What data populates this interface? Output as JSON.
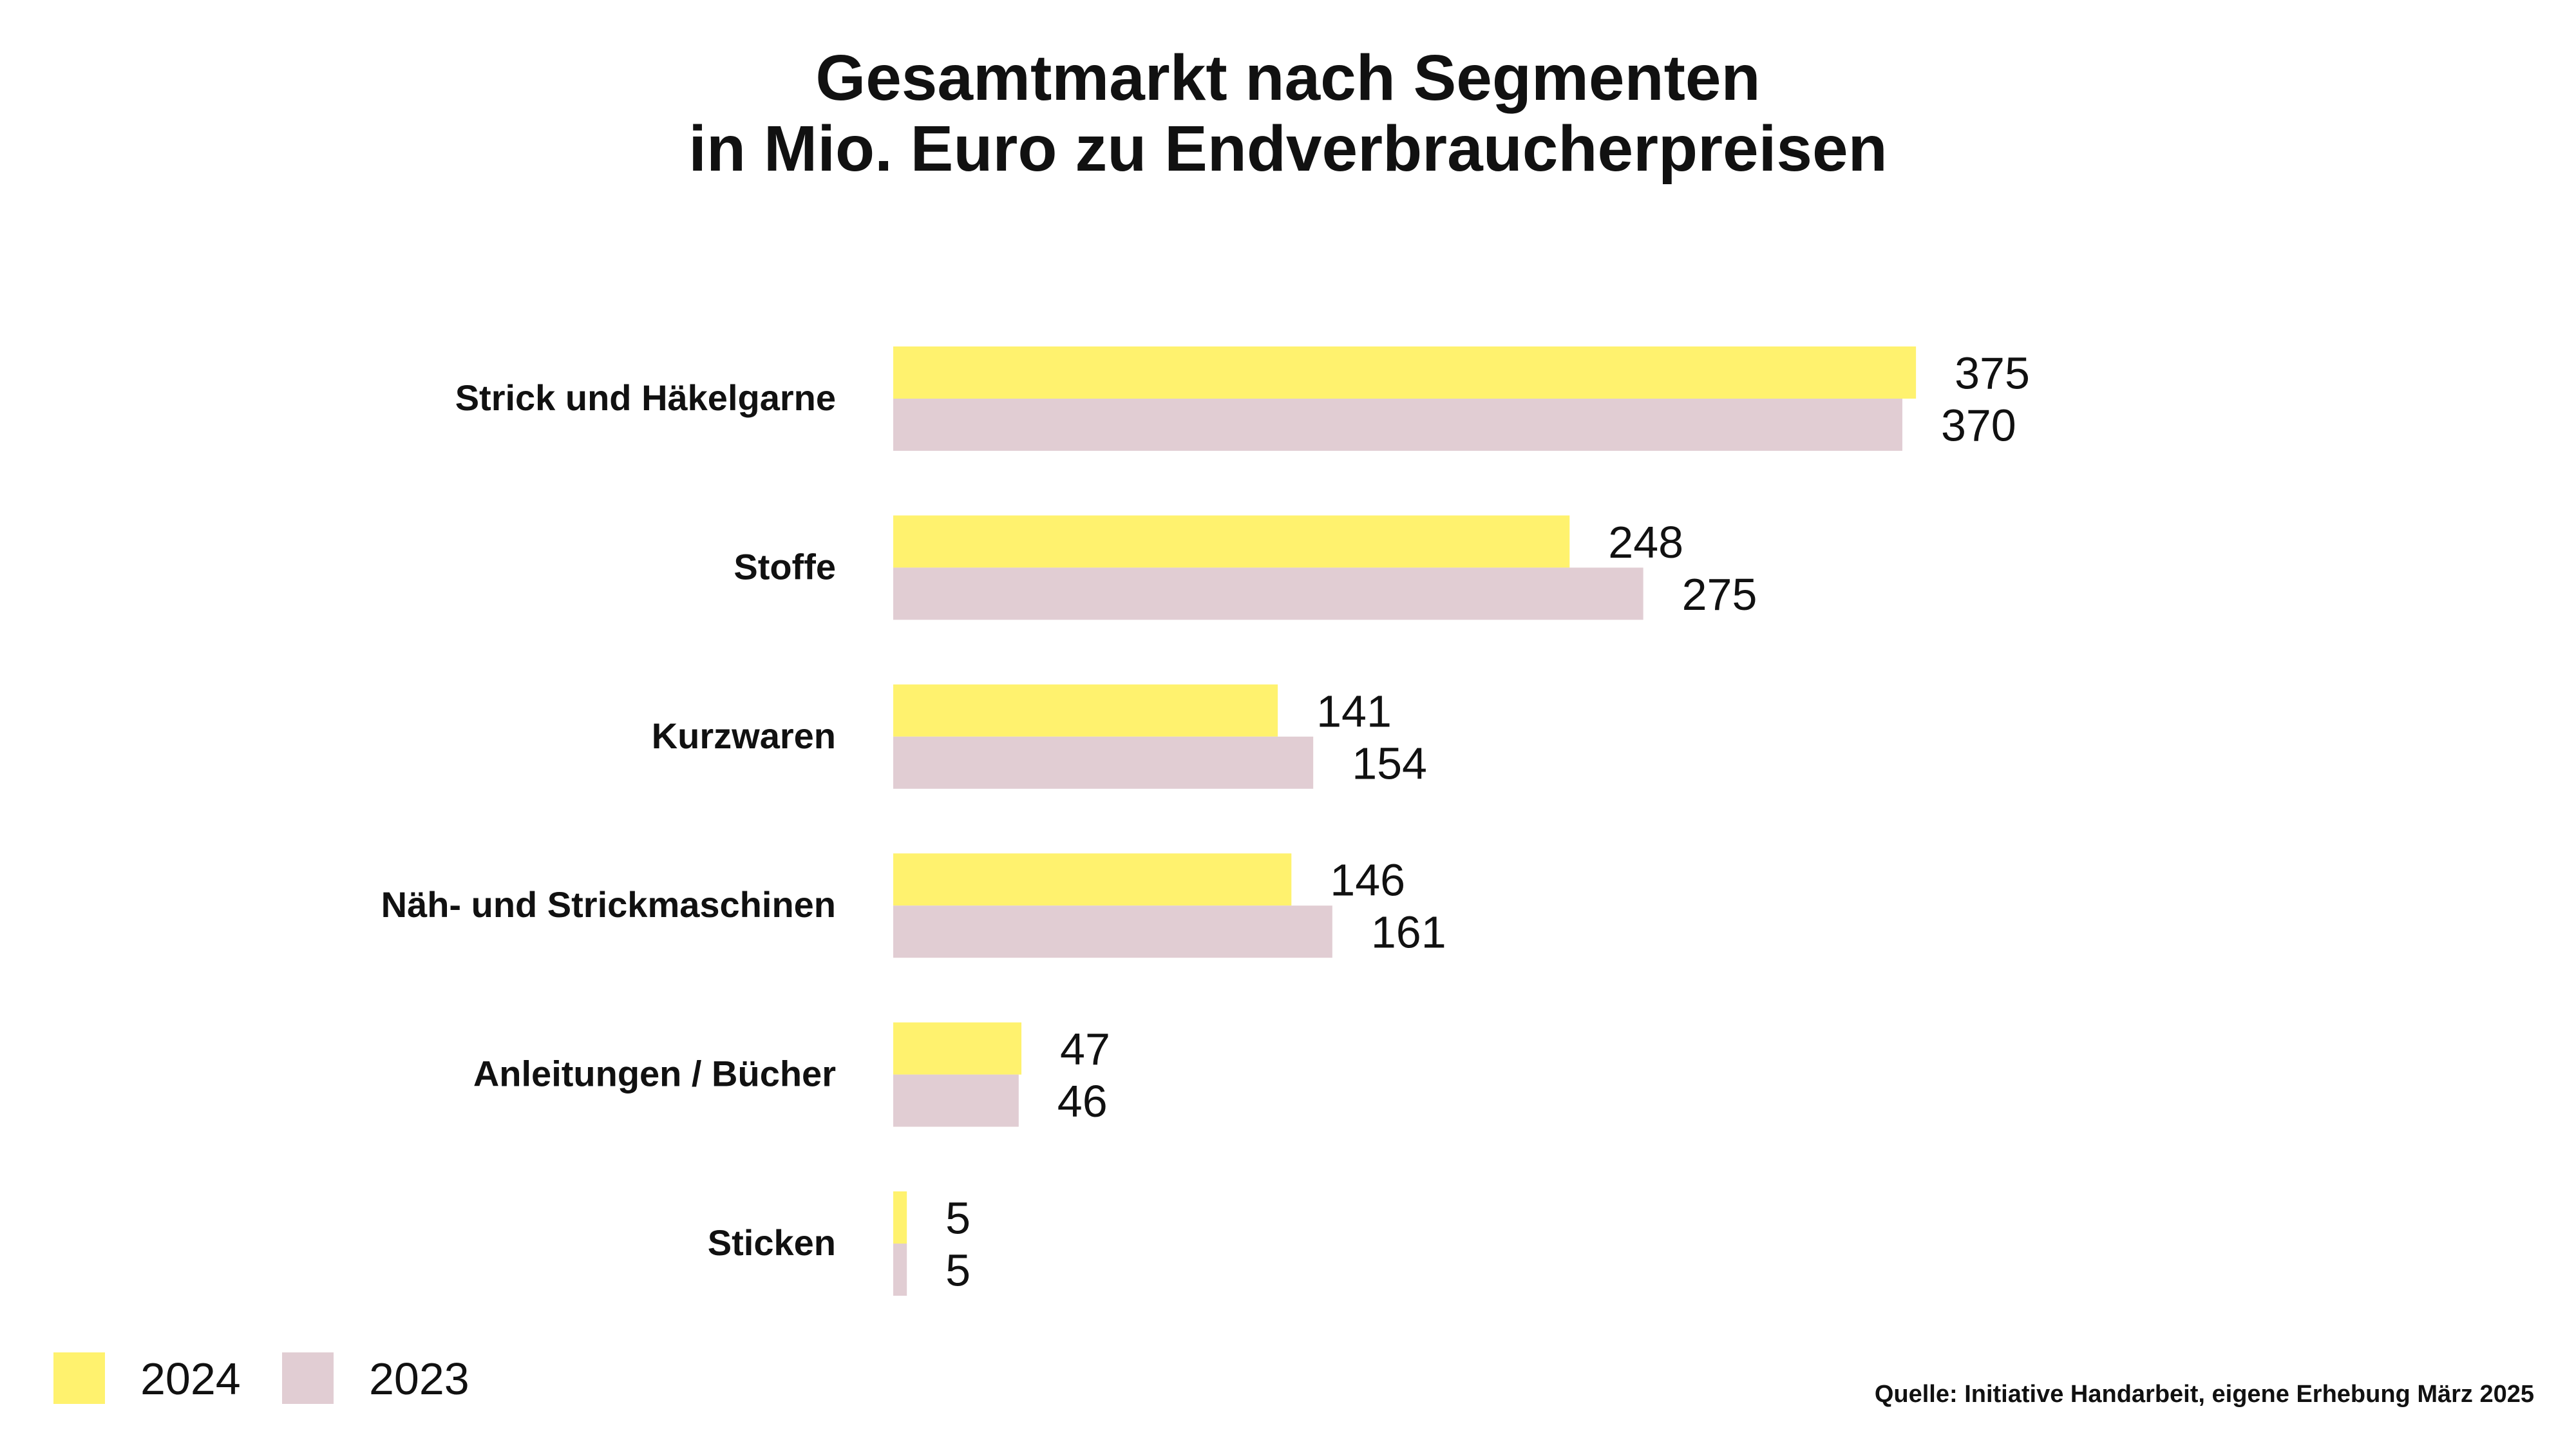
{
  "chart_data": {
    "type": "bar",
    "orientation": "horizontal",
    "title": [
      "Gesamtmarkt nach Segmenten",
      "in Mio. Euro zu Endverbraucherpreisen"
    ],
    "categories": [
      "Strick und Häkelgarne",
      "Stoffe",
      "Kurzwaren",
      "Näh- und Strickmaschinen",
      "Anleitungen / Bücher",
      "Sticken"
    ],
    "series": [
      {
        "name": "2024",
        "color": "#FFF26E",
        "values": [
          375,
          248,
          141,
          146,
          47,
          5
        ]
      },
      {
        "name": "2023",
        "color": "#E1CDD3",
        "values": [
          370,
          275,
          154,
          161,
          46,
          5
        ]
      }
    ],
    "grid": false,
    "legend_position": "bottom-left",
    "source": "Quelle: Initiative Handarbeit, eigene Erhebung März 2025"
  }
}
